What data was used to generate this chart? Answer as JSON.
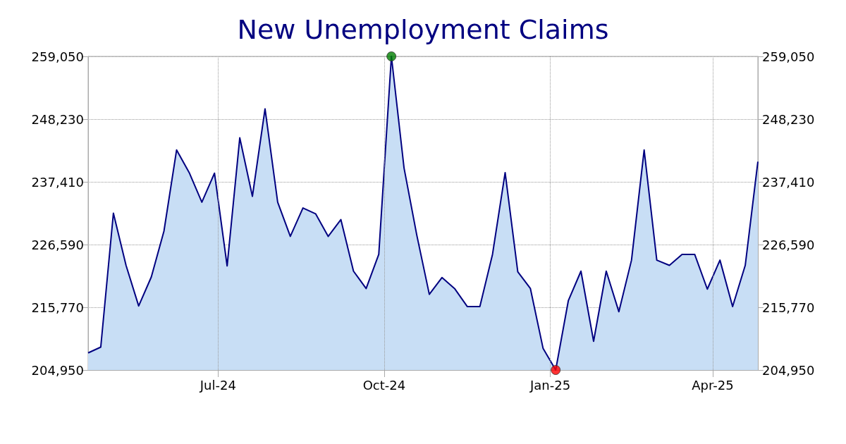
{
  "chart_data": {
    "type": "area",
    "title": "New Unemployment Claims",
    "x": [
      "2024-04-20",
      "2024-04-27",
      "2024-05-04",
      "2024-05-11",
      "2024-05-18",
      "2024-05-25",
      "2024-06-01",
      "2024-06-08",
      "2024-06-15",
      "2024-06-22",
      "2024-06-29",
      "2024-07-06",
      "2024-07-13",
      "2024-07-20",
      "2024-07-27",
      "2024-08-03",
      "2024-08-10",
      "2024-08-17",
      "2024-08-24",
      "2024-08-31",
      "2024-09-07",
      "2024-09-14",
      "2024-09-21",
      "2024-09-28",
      "2024-10-05",
      "2024-10-12",
      "2024-10-19",
      "2024-10-26",
      "2024-11-02",
      "2024-11-09",
      "2024-11-16",
      "2024-11-23",
      "2024-11-30",
      "2024-12-07",
      "2024-12-14",
      "2024-12-21",
      "2024-12-28",
      "2025-01-04",
      "2025-01-11",
      "2025-01-18",
      "2025-01-25",
      "2025-02-01",
      "2025-02-08",
      "2025-02-15",
      "2025-02-22",
      "2025-03-01",
      "2025-03-08",
      "2025-03-15",
      "2025-03-22",
      "2025-03-29",
      "2025-04-05",
      "2025-04-12",
      "2025-04-19",
      "2025-04-26"
    ],
    "series": [
      {
        "color": "#000080",
        "values": [
          207900,
          208900,
          232000,
          223000,
          216000,
          221000,
          228900,
          242900,
          239000,
          233900,
          238900,
          222900,
          245000,
          234900,
          250000,
          233900,
          228000,
          232900,
          231900,
          228000,
          230900,
          222000,
          219000,
          224900,
          259050,
          239800,
          228300,
          218000,
          220900,
          219000,
          215900,
          215900,
          224900,
          239000,
          221900,
          219000,
          208700,
          204950,
          216900,
          222000,
          209900,
          222000,
          215000,
          223900,
          242900,
          223900,
          223000,
          224900,
          224900,
          218900,
          223900,
          215900,
          223000,
          240900
        ]
      },
      {
        "type": "scatter",
        "marker": "circle",
        "x": [
          "2024-10-05",
          "2025-01-04"
        ],
        "values": [
          259050,
          204950
        ],
        "colors": [
          "#008000",
          "#ff0000"
        ]
      }
    ],
    "xlim": [
      "2024-04-20",
      "2025-04-26"
    ],
    "xticks": [
      {
        "value": "2024-07-01",
        "label": "Jul-24"
      },
      {
        "value": "2024-10-01",
        "label": "Oct-24"
      },
      {
        "value": "2025-01-01",
        "label": "Jan-25"
      },
      {
        "value": "2025-04-01",
        "label": "Apr-25"
      }
    ],
    "ylim": [
      204950,
      259050
    ],
    "yticks": [
      {
        "value": 204950,
        "label": "204,950"
      },
      {
        "value": 215770,
        "label": "215,770"
      },
      {
        "value": 226590,
        "label": "226,590"
      },
      {
        "value": 237410,
        "label": "237,410"
      },
      {
        "value": 248230,
        "label": "248,230"
      },
      {
        "value": 259050,
        "label": "259,050"
      }
    ],
    "y2lim": [
      204950,
      259050
    ],
    "y2ticks": [
      {
        "value": 204950,
        "label": "204,950"
      },
      {
        "value": 215770,
        "label": "215,770"
      },
      {
        "value": 226590,
        "label": "226,590"
      },
      {
        "value": 237410,
        "label": "237,410"
      },
      {
        "value": 248230,
        "label": "248,230"
      },
      {
        "value": 259050,
        "label": "259,050"
      }
    ],
    "grid": true,
    "marker": "none",
    "line_style": "solid"
  }
}
